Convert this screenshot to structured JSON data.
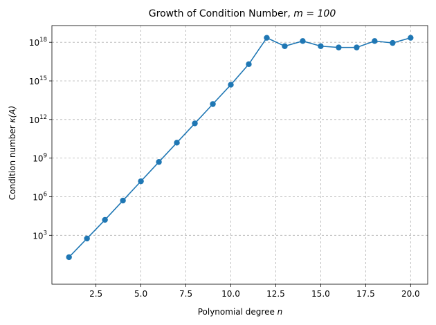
{
  "chart_data": {
    "type": "line",
    "title": "Growth of Condition Number, m = 100",
    "title_parts": {
      "prefix": "Growth of Condition Number, ",
      "math": "m = 100"
    },
    "xlabel": "Polynomial degree n",
    "xlabel_parts": {
      "prefix": "Polynomial degree ",
      "math": "n"
    },
    "ylabel": "Condition number κ(A)",
    "ylabel_parts": {
      "prefix": "Condition number ",
      "math": "κ(A)"
    },
    "x_scale": "linear",
    "y_scale": "log",
    "xlim": [
      0.05,
      20.95
    ],
    "ylim_log10": [
      -0.8,
      19.3
    ],
    "grid": true,
    "x_ticks": [
      2.5,
      5.0,
      7.5,
      10.0,
      12.5,
      15.0,
      17.5,
      20.0
    ],
    "x_tick_labels": [
      "2.5",
      "5.0",
      "7.5",
      "10.0",
      "12.5",
      "15.0",
      "17.5",
      "20.0"
    ],
    "y_ticks_log10": [
      3,
      6,
      9,
      12,
      15,
      18
    ],
    "y_tick_labels": [
      {
        "base": "10",
        "exp": "3"
      },
      {
        "base": "10",
        "exp": "6"
      },
      {
        "base": "10",
        "exp": "9"
      },
      {
        "base": "10",
        "exp": "12"
      },
      {
        "base": "10",
        "exp": "15"
      },
      {
        "base": "10",
        "exp": "18"
      }
    ],
    "series": [
      {
        "color": "#1f77b4",
        "marker": "circle",
        "x": [
          1,
          2,
          3,
          4,
          5,
          6,
          7,
          8,
          9,
          10,
          11,
          12,
          13,
          14,
          15,
          16,
          17,
          18,
          19,
          20
        ],
        "y_log10": [
          1.3,
          2.75,
          4.2,
          5.7,
          7.2,
          8.7,
          10.2,
          11.7,
          13.2,
          14.7,
          16.3,
          18.35,
          17.7,
          18.1,
          17.7,
          17.6,
          17.6,
          18.1,
          17.95,
          18.35
        ]
      }
    ]
  }
}
